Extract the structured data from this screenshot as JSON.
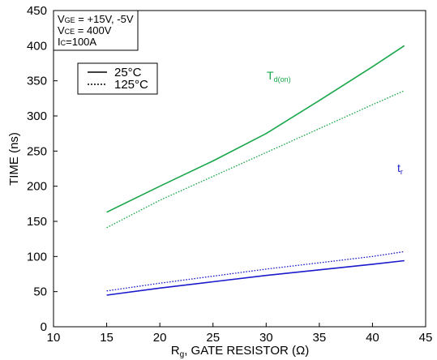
{
  "chart_data": {
    "type": "line",
    "xlabel_main": "R",
    "xlabel_sub": "g",
    "xlabel_rest": ", GATE RESISTOR (Ω)",
    "ylabel": "TIME (ns)",
    "xlim": [
      10,
      45
    ],
    "ylim": [
      0,
      450
    ],
    "x_ticks": [
      "10",
      "15",
      "20",
      "25",
      "30",
      "35",
      "40",
      "45"
    ],
    "y_ticks": [
      "0",
      "50",
      "100",
      "150",
      "200",
      "250",
      "300",
      "350",
      "400",
      "450"
    ],
    "grid": false,
    "conditions": {
      "line1_main": "V",
      "line1_sub": "GE",
      "line1_rest": " = +15V, -5V",
      "line2_main": "V",
      "line2_sub": "CE",
      "line2_rest": " = 400V",
      "line3_main": "I",
      "line3_sub": "C",
      "line3_rest": "=100A"
    },
    "legend": {
      "placement": "top-left",
      "entries": [
        {
          "label": "25°C",
          "style": "solid"
        },
        {
          "label": "125°C",
          "style": "dotted"
        }
      ]
    },
    "annotations": {
      "td_main": "T",
      "td_sub": "d(on)",
      "tr_main": "t",
      "tr_sub": "r"
    },
    "series": [
      {
        "group": "td_on",
        "style": "solid",
        "color": "#1aa64a",
        "x": [
          15,
          20,
          25,
          30,
          35,
          40,
          43
        ],
        "y": [
          163,
          200,
          236,
          275,
          322,
          370,
          400
        ]
      },
      {
        "group": "td_on",
        "style": "dotted",
        "color": "#1aa64a",
        "x": [
          15,
          20,
          25,
          30,
          35,
          40,
          43
        ],
        "y": [
          141,
          180,
          214,
          248,
          282,
          316,
          336
        ]
      },
      {
        "group": "tr",
        "style": "solid",
        "color": "#1a1acc",
        "x": [
          15,
          20,
          25,
          30,
          35,
          40,
          43
        ],
        "y": [
          45,
          55,
          64,
          73,
          81,
          89,
          94
        ]
      },
      {
        "group": "tr",
        "style": "dotted",
        "color": "#1a1acc",
        "x": [
          15,
          20,
          25,
          30,
          35,
          40,
          43
        ],
        "y": [
          51,
          62,
          72,
          82,
          91,
          100,
          107
        ]
      }
    ]
  },
  "colors": {
    "td_on": "#1aa64a",
    "tr": "#1a1acc",
    "axis": "#000000"
  }
}
